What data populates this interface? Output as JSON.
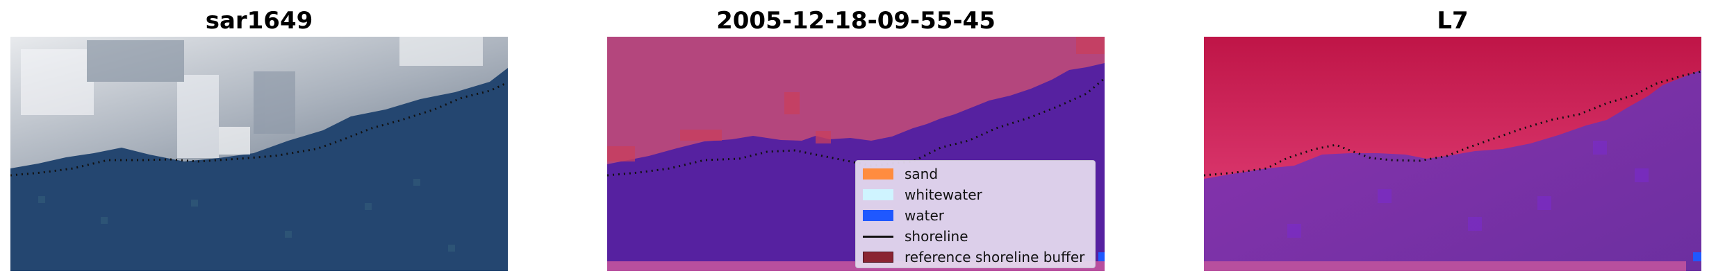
{
  "panels": [
    {
      "title": "sar1649"
    },
    {
      "title": "2005-12-18-09-55-45"
    },
    {
      "title": "L7"
    }
  ],
  "legend": {
    "items": [
      {
        "label": "sand",
        "color": "#ff8c3f",
        "kind": "patch"
      },
      {
        "label": "whitewater",
        "color": "#cff4ff",
        "kind": "patch"
      },
      {
        "label": "water",
        "color": "#1f58ff",
        "kind": "patch"
      },
      {
        "label": "shoreline",
        "color": "#111111",
        "kind": "line"
      },
      {
        "label": "reference shoreline buffer",
        "color": "#8a2432",
        "kind": "patch"
      }
    ]
  },
  "colors": {
    "rgb_water": "#244670",
    "rgb_cloud": "#d2d6dc",
    "classified_water": "#5621a0",
    "classified_land": "#b4467d",
    "ndwi_land": "#ca1b49",
    "ndwi_water": "#7d32a8",
    "strip": "#b84f9e",
    "accent_blue": "#1f58ff"
  }
}
